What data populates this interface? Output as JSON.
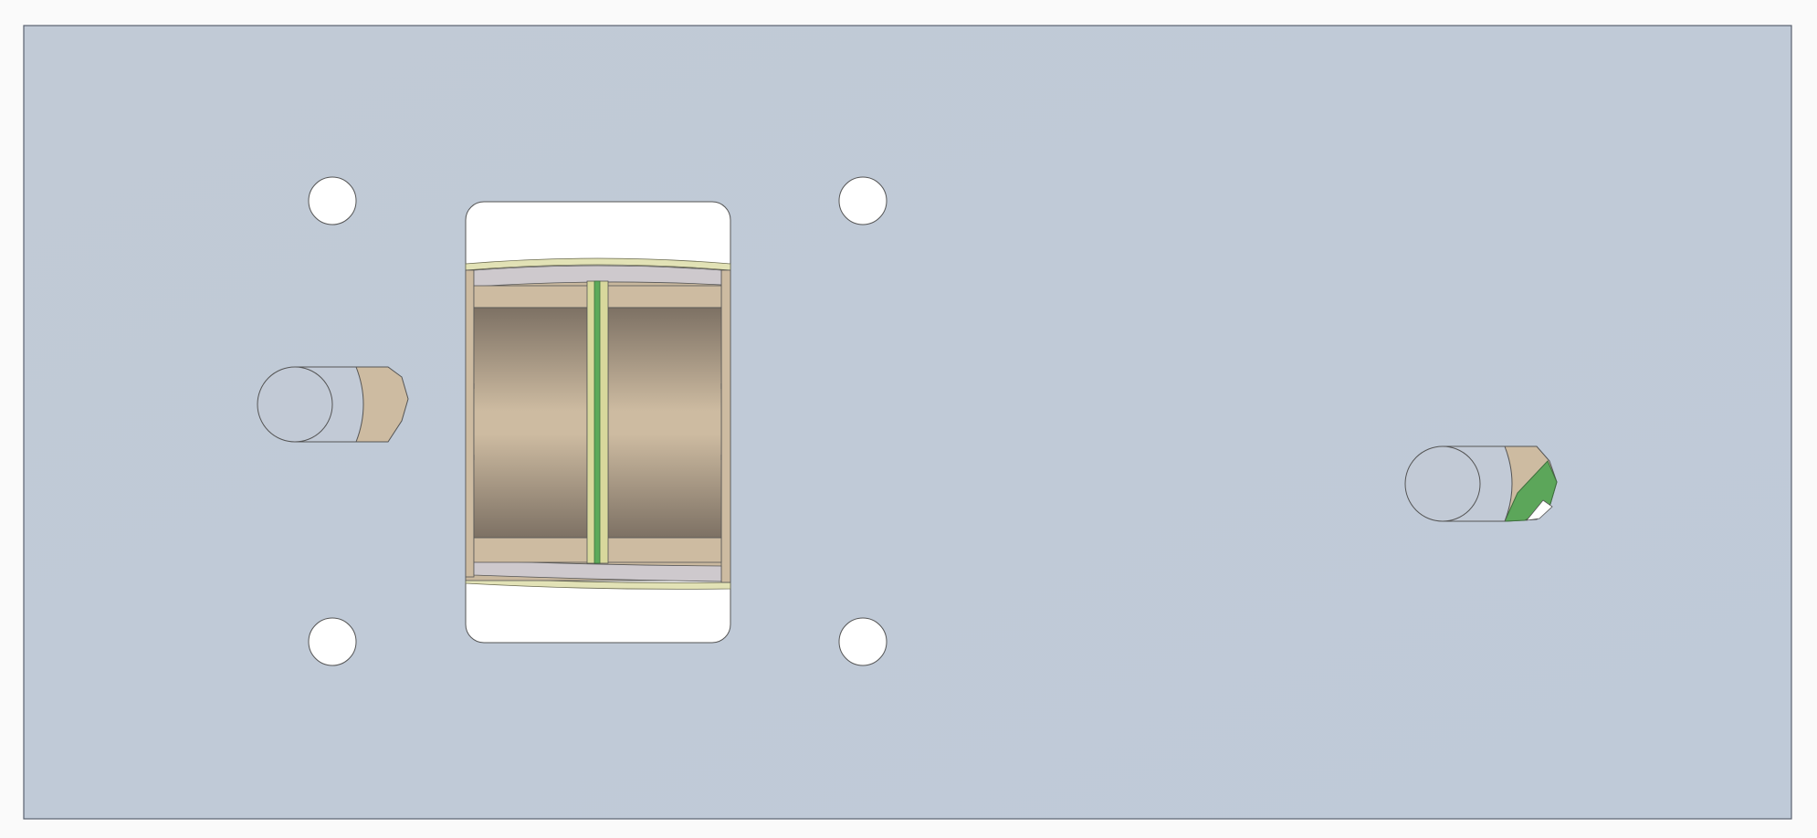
{
  "view": {
    "background": "#fafafa",
    "plate_color": "#c1cad6",
    "plate_edge": "#5a6270",
    "hole_fill": "#ffffff",
    "bore_wall_colors": [
      "#7d7164",
      "#cdbba1",
      "#7d7164"
    ],
    "flange_color": "#cdbba1",
    "lining_color": "#cec9cd",
    "rim_color": "#e2e2b6",
    "separator_color": "#d8d89c",
    "groove_color": "#5caa5a",
    "pin_face_color": "#c2cad6",
    "pin_end_color": "#cdbba1",
    "pin_highlight": "#5ca65a"
  },
  "components": {
    "mounting_holes": 4,
    "central_bore": 1,
    "dowel_pins": 2
  }
}
